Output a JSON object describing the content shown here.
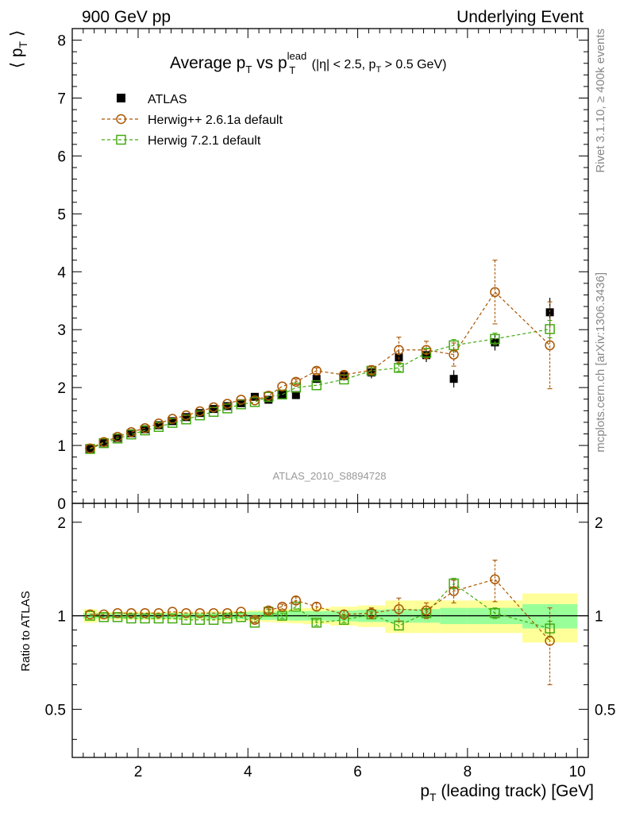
{
  "header": {
    "left": "900 GeV pp",
    "right": "Underlying Event"
  },
  "side_text": {
    "rivet": "Rivet 3.1.10, ≥ 400k events",
    "mcplots": "mcplots.cern.ch [arXiv:1306.3436]"
  },
  "chart_data": {
    "type": "scatter",
    "title": {
      "prefix": "Average p",
      "sub1": "T",
      "mid": " vs p",
      "sup2": "lead",
      "sub2": "T",
      "cuts_a": " (|η| < 2.5, p",
      "cuts_sub": "T",
      "cuts_b": " > 0.5 GeV)"
    },
    "watermark": "ATLAS_2010_S8894728",
    "xlabel": {
      "main": "p",
      "sub": "T",
      "rest": " (leading track) [GeV]"
    },
    "ylabel_top": {
      "left": "⟨ p",
      "sub": "T",
      "right": " ⟩"
    },
    "ylabel_bottom": "Ratio to ATLAS",
    "xlim": [
      0.8,
      10.2
    ],
    "ylim_top": [
      0,
      8.2
    ],
    "ylim_ratio": [
      0.35,
      2.3
    ],
    "ratio_log_scale": true,
    "x_ticks": [
      "2",
      "4",
      "6",
      "8",
      "10"
    ],
    "y_ticks_top": [
      "0",
      "1",
      "2",
      "3",
      "4",
      "5",
      "6",
      "7",
      "8"
    ],
    "y_ticks_ratio": [
      "0.5",
      "1",
      "2"
    ],
    "legend": {
      "position": "top-left",
      "entries": [
        "ATLAS",
        "Herwig++ 2.6.1a default",
        "Herwig 7.2.1 default"
      ]
    },
    "colors": {
      "data": "#000000",
      "herwigpp": "#aa5500",
      "herwig7": "#44aa11",
      "band_inner": "#99ff99",
      "band_outer": "#ffff99"
    },
    "x": [
      1.125,
      1.375,
      1.625,
      1.875,
      2.125,
      2.375,
      2.625,
      2.875,
      3.125,
      3.375,
      3.625,
      3.875,
      4.125,
      4.375,
      4.625,
      4.875,
      5.25,
      5.75,
      6.25,
      6.75,
      7.25,
      7.75,
      8.5,
      9.5
    ],
    "x_low": [
      1.0,
      1.25,
      1.5,
      1.75,
      2.0,
      2.25,
      2.5,
      2.75,
      3.0,
      3.25,
      3.5,
      3.75,
      4.0,
      4.25,
      4.5,
      4.75,
      5.0,
      5.5,
      6.0,
      6.5,
      7.0,
      7.5,
      8.0,
      9.0
    ],
    "x_high": [
      1.25,
      1.5,
      1.75,
      2.0,
      2.25,
      2.5,
      2.75,
      3.0,
      3.25,
      3.5,
      3.75,
      4.0,
      4.25,
      4.5,
      4.75,
      5.0,
      5.5,
      6.0,
      6.5,
      7.0,
      7.5,
      8.0,
      9.0,
      10.0
    ],
    "series": [
      {
        "name": "ATLAS",
        "marker": "filled-square",
        "values": [
          0.94,
          1.05,
          1.13,
          1.21,
          1.28,
          1.35,
          1.42,
          1.49,
          1.56,
          1.63,
          1.68,
          1.73,
          1.84,
          1.79,
          1.88,
          1.87,
          2.15,
          2.2,
          2.26,
          2.52,
          2.56,
          2.15,
          2.78,
          3.3
        ],
        "errors": [
          0.02,
          0.02,
          0.02,
          0.02,
          0.02,
          0.03,
          0.03,
          0.03,
          0.03,
          0.04,
          0.04,
          0.04,
          0.05,
          0.05,
          0.06,
          0.06,
          0.07,
          0.08,
          0.1,
          0.12,
          0.12,
          0.15,
          0.14,
          0.25
        ]
      },
      {
        "name": "Herwig++ 2.6.1a default",
        "marker": "open-circle",
        "values": [
          0.95,
          1.06,
          1.15,
          1.23,
          1.3,
          1.38,
          1.46,
          1.52,
          1.59,
          1.66,
          1.72,
          1.79,
          1.78,
          1.86,
          2.02,
          2.1,
          2.29,
          2.22,
          2.3,
          2.65,
          2.65,
          2.57,
          3.65,
          2.73
        ],
        "errors": [
          0.01,
          0.01,
          0.01,
          0.01,
          0.01,
          0.01,
          0.01,
          0.02,
          0.02,
          0.02,
          0.02,
          0.03,
          0.03,
          0.03,
          0.04,
          0.05,
          0.05,
          0.06,
          0.08,
          0.22,
          0.15,
          0.2,
          0.55,
          0.75
        ]
      },
      {
        "name": "Herwig 7.2.1 default",
        "marker": "open-square",
        "values": [
          0.94,
          1.04,
          1.12,
          1.19,
          1.26,
          1.32,
          1.39,
          1.45,
          1.52,
          1.58,
          1.64,
          1.71,
          1.75,
          1.84,
          1.88,
          2.0,
          2.04,
          2.14,
          2.29,
          2.34,
          2.6,
          2.73,
          2.84,
          3.01
        ],
        "errors": [
          0.01,
          0.01,
          0.01,
          0.01,
          0.01,
          0.01,
          0.01,
          0.01,
          0.01,
          0.02,
          0.02,
          0.02,
          0.02,
          0.03,
          0.03,
          0.03,
          0.03,
          0.04,
          0.05,
          0.06,
          0.07,
          0.1,
          0.1,
          0.15
        ]
      }
    ],
    "ratio": {
      "herwigpp": [
        1.01,
        1.01,
        1.02,
        1.02,
        1.02,
        1.02,
        1.03,
        1.02,
        1.02,
        1.02,
        1.02,
        1.03,
        0.97,
        1.04,
        1.07,
        1.12,
        1.07,
        1.01,
        1.02,
        1.05,
        1.04,
        1.2,
        1.31,
        0.83
      ],
      "herwigpp_err": [
        0.01,
        0.01,
        0.01,
        0.01,
        0.01,
        0.01,
        0.01,
        0.01,
        0.01,
        0.01,
        0.01,
        0.01,
        0.02,
        0.02,
        0.02,
        0.03,
        0.03,
        0.03,
        0.04,
        0.09,
        0.06,
        0.1,
        0.2,
        0.23
      ],
      "herwig7": [
        1.0,
        0.99,
        0.99,
        0.98,
        0.98,
        0.98,
        0.98,
        0.97,
        0.97,
        0.97,
        0.98,
        0.99,
        0.95,
        1.03,
        1.0,
        1.07,
        0.95,
        0.97,
        1.01,
        0.93,
        1.02,
        1.27,
        1.02,
        0.91
      ],
      "herwig7_err": [
        0.01,
        0.01,
        0.01,
        0.01,
        0.01,
        0.01,
        0.01,
        0.01,
        0.01,
        0.01,
        0.01,
        0.01,
        0.01,
        0.02,
        0.02,
        0.02,
        0.02,
        0.02,
        0.02,
        0.03,
        0.03,
        0.05,
        0.04,
        0.05
      ],
      "band_inner": [
        0.02,
        0.02,
        0.02,
        0.02,
        0.02,
        0.02,
        0.02,
        0.02,
        0.02,
        0.025,
        0.025,
        0.025,
        0.03,
        0.03,
        0.03,
        0.035,
        0.035,
        0.04,
        0.045,
        0.05,
        0.05,
        0.06,
        0.06,
        0.09
      ],
      "band_outer": [
        0.05,
        0.03,
        0.03,
        0.03,
        0.03,
        0.03,
        0.03,
        0.03,
        0.03,
        0.035,
        0.035,
        0.035,
        0.04,
        0.045,
        0.05,
        0.055,
        0.06,
        0.07,
        0.08,
        0.12,
        0.12,
        0.12,
        0.12,
        0.18
      ]
    }
  }
}
